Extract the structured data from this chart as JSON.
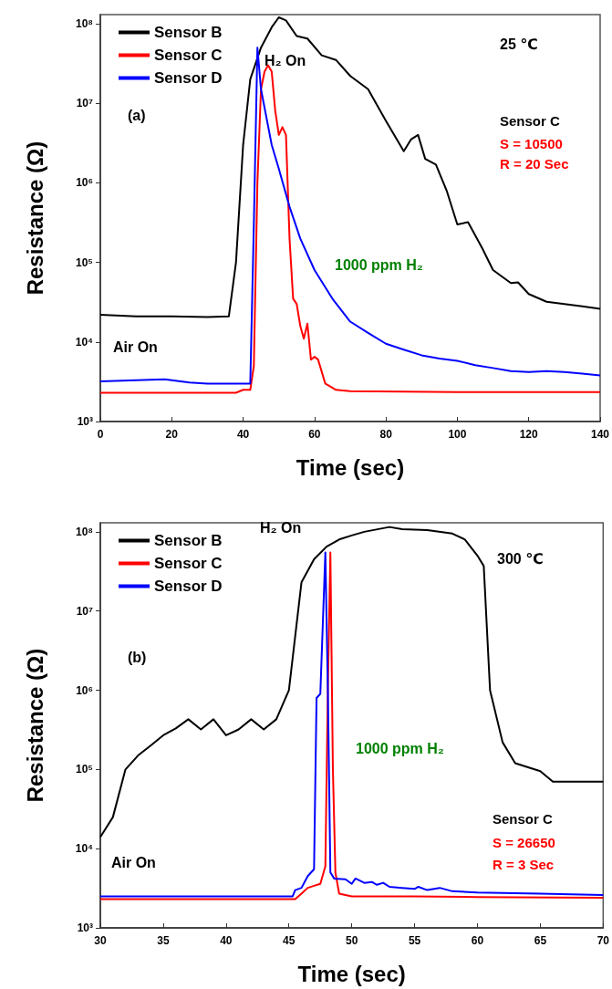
{
  "chart_data": [
    {
      "type": "line",
      "xlabel": "Time (sec)",
      "ylabel": "Resistance (Ω)",
      "log": "y",
      "grid": false,
      "legend": "top left",
      "marker": "none",
      "line_style": "solid",
      "xlim": [
        0,
        140
      ],
      "xticks": [
        0,
        20,
        40,
        60,
        80,
        100,
        120,
        140
      ],
      "ylim": [
        1000,
        130000000
      ],
      "yticks": [
        {
          "value": 1000,
          "label": "10³"
        },
        {
          "value": 10000,
          "label": "10⁴"
        },
        {
          "value": 100000,
          "label": "10⁵"
        },
        {
          "value": 1000000,
          "label": "10⁶"
        },
        {
          "value": 10000000,
          "label": "10⁷"
        },
        {
          "value": 100000000,
          "label": "10⁸"
        }
      ],
      "annotations": [
        "H₂ On",
        "25 ℃",
        "(a)",
        "Sensor C",
        "S = 10500",
        "R = 20 Sec",
        "1000 ppm H₂",
        "Air On"
      ],
      "series": [
        {
          "name": "Sensor B",
          "color": "#000000",
          "x": [
            0,
            10,
            20,
            30,
            36,
            38,
            40,
            42,
            45,
            48,
            50,
            52,
            55,
            58,
            62,
            66,
            70,
            75,
            80,
            85,
            87,
            89,
            91,
            94,
            97,
            100,
            103,
            107,
            110,
            115,
            117,
            120,
            125,
            130,
            135,
            140
          ],
          "values": [
            22000,
            21000,
            21000,
            20500,
            21000,
            100000,
            3000000,
            20000000,
            50000000,
            90000000,
            120000000,
            110000000,
            70000000,
            65000000,
            40000000,
            35000000,
            22000000,
            15000000,
            6000000,
            2500000,
            3500000,
            4000000,
            2000000,
            1700000,
            800000,
            300000,
            320000,
            150000,
            80000,
            55000,
            56000,
            40000,
            32000,
            30000,
            28000,
            26000
          ]
        },
        {
          "name": "Sensor C",
          "color": "#ff0000",
          "x": [
            0,
            20,
            38,
            40,
            42,
            43,
            44,
            45,
            46,
            47,
            48,
            49,
            50,
            51,
            52,
            53,
            54,
            55,
            56,
            57,
            58,
            59,
            60,
            61,
            63,
            66,
            70,
            100,
            140
          ],
          "values": [
            2300,
            2300,
            2300,
            2500,
            2500,
            5000,
            1000000,
            15000000,
            25000000,
            30000000,
            25000000,
            8000000,
            4000000,
            5000000,
            4000000,
            200000,
            35000,
            30000,
            16000,
            11000,
            17000,
            6000,
            6500,
            6000,
            3000,
            2500,
            2400,
            2350,
            2350
          ]
        },
        {
          "name": "Sensor D",
          "color": "#0000ff",
          "x": [
            0,
            10,
            18,
            25,
            30,
            42,
            43,
            44,
            45,
            48,
            50,
            53,
            56,
            60,
            65,
            70,
            75,
            80,
            85,
            90,
            95,
            100,
            105,
            110,
            115,
            120,
            125,
            130,
            135,
            140
          ],
          "values": [
            3200,
            3300,
            3400,
            3100,
            3000,
            3000,
            300000,
            50000000,
            15000000,
            3000000,
            1500000,
            500000,
            200000,
            80000,
            35000,
            18000,
            13000,
            9500,
            8000,
            6800,
            6200,
            5800,
            5100,
            4700,
            4300,
            4200,
            4300,
            4200,
            4000,
            3800
          ]
        }
      ]
    },
    {
      "type": "line",
      "xlabel": "Time (sec)",
      "ylabel": "Resistance (Ω)",
      "log": "y",
      "grid": false,
      "legend": "top left",
      "marker": "none",
      "line_style": "solid",
      "xlim": [
        30,
        70
      ],
      "xticks": [
        30,
        35,
        40,
        45,
        50,
        55,
        60,
        65,
        70
      ],
      "ylim": [
        1000,
        130000000
      ],
      "yticks": [
        {
          "value": 1000,
          "label": "10³"
        },
        {
          "value": 10000,
          "label": "10⁴"
        },
        {
          "value": 100000,
          "label": "10⁵"
        },
        {
          "value": 1000000,
          "label": "10⁶"
        },
        {
          "value": 10000000,
          "label": "10⁷"
        },
        {
          "value": 100000000,
          "label": "10⁸"
        }
      ],
      "annotations": [
        "H₂ On",
        "300 ℃",
        "(b)",
        "Sensor C",
        "S = 26650",
        "R = 3 Sec",
        "1000 ppm H₂",
        "Air On"
      ],
      "series": [
        {
          "name": "Sensor B",
          "color": "#000000",
          "x": [
            30,
            31,
            32,
            33,
            34,
            35,
            36,
            37,
            38,
            39,
            40,
            41,
            42,
            43,
            44,
            45,
            46,
            47,
            48,
            49,
            50,
            51,
            53,
            54,
            56,
            58,
            59,
            60,
            60.5,
            61,
            62,
            63,
            65,
            66,
            68,
            70
          ],
          "values": [
            14000,
            25000,
            100000,
            150000,
            200000,
            270000,
            330000,
            430000,
            320000,
            430000,
            270000,
            320000,
            430000,
            320000,
            430000,
            1000000,
            23000000,
            45000000,
            65000000,
            80000000,
            90000000,
            100000000,
            115000000,
            108000000,
            105000000,
            95000000,
            80000000,
            50000000,
            37000000,
            1000000,
            220000,
            120000,
            95000,
            70000,
            70000,
            70000
          ]
        },
        {
          "name": "Sensor C",
          "color": "#ff0000",
          "x": [
            30,
            40,
            45.5,
            46,
            46.5,
            47,
            47.5,
            47.9,
            48.1,
            48.3,
            48.5,
            48.7,
            49,
            50,
            55,
            60,
            70
          ],
          "values": [
            2300,
            2300,
            2300,
            2700,
            3200,
            3400,
            3600,
            6000,
            1000000,
            55000000,
            100000,
            5000,
            2700,
            2500,
            2500,
            2450,
            2400
          ]
        },
        {
          "name": "Sensor D",
          "color": "#0000ff",
          "x": [
            30,
            40,
            45.3,
            45.5,
            46,
            46.5,
            47,
            47.2,
            47.5,
            47.9,
            48.1,
            48.3,
            48.6,
            49.5,
            50,
            50.3,
            51,
            51.6,
            52,
            52.5,
            53,
            54,
            55,
            55.3,
            56,
            57,
            58,
            60,
            65,
            70
          ],
          "values": [
            2500,
            2500,
            2500,
            3000,
            3200,
            4500,
            5500,
            800000,
            900000,
            55000000,
            1000000,
            5000,
            4200,
            4100,
            3600,
            4200,
            3700,
            3800,
            3500,
            3700,
            3300,
            3200,
            3100,
            3300,
            3000,
            3200,
            2900,
            2800,
            2700,
            2600
          ]
        }
      ]
    }
  ]
}
